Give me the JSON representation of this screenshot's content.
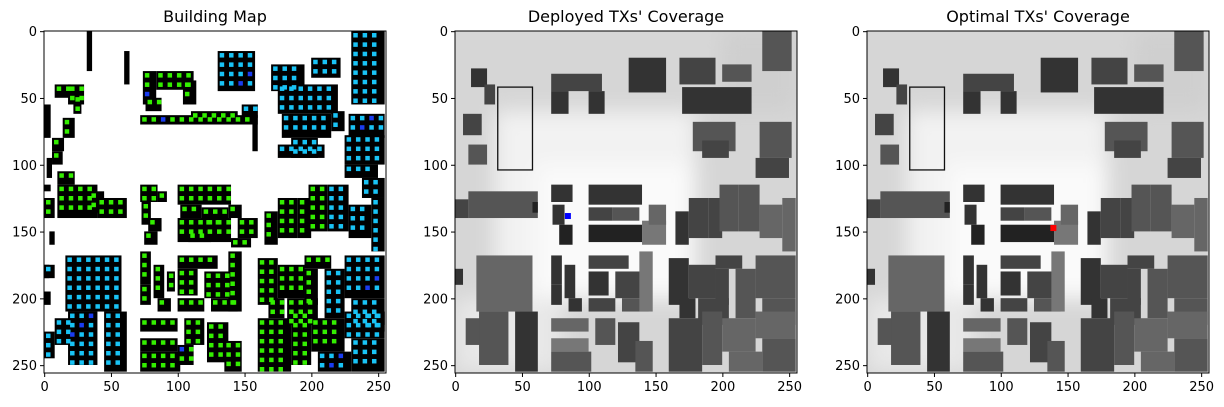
{
  "chart_data": [
    {
      "type": "heatmap",
      "title": "Building Map",
      "xlim": [
        0,
        255
      ],
      "ylim": [
        255,
        0
      ],
      "xticks": [
        0,
        50,
        100,
        150,
        200,
        250
      ],
      "yticks": [
        0,
        50,
        100,
        150,
        200,
        250
      ],
      "background_color": "#ffffff",
      "building_color": "#000000",
      "marker_colors": [
        "#33ee00",
        "#19c3f5",
        "#1a3cf0"
      ]
    },
    {
      "type": "heatmap",
      "title": "Deployed TXs' Coverage",
      "xlim": [
        0,
        255
      ],
      "ylim": [
        255,
        0
      ],
      "xticks": [
        0,
        50,
        100,
        150,
        200,
        250
      ],
      "yticks": [
        0,
        50,
        100,
        150,
        200,
        250
      ],
      "colormap": "gray",
      "transmitter": {
        "x": 84,
        "y": 138,
        "color": "#0000ff"
      }
    },
    {
      "type": "heatmap",
      "title": "Optimal TXs' Coverage",
      "xlim": [
        0,
        255
      ],
      "ylim": [
        255,
        0
      ],
      "xticks": [
        0,
        50,
        100,
        150,
        200,
        250
      ],
      "yticks": [
        0,
        50,
        100,
        150,
        200,
        250
      ],
      "colormap": "gray",
      "transmitter": {
        "x": 139,
        "y": 147,
        "color": "#ff0000"
      }
    }
  ]
}
